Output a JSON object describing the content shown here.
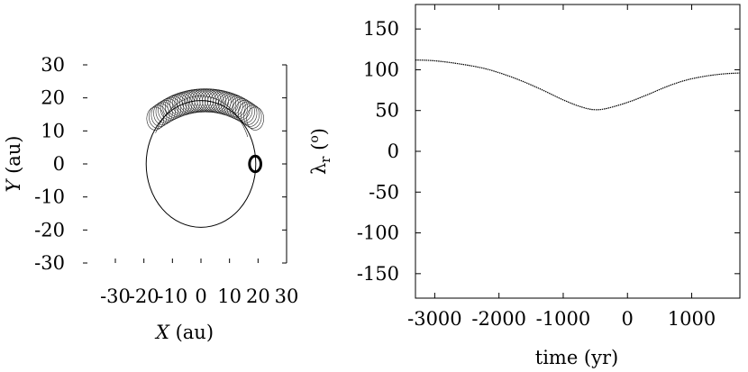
{
  "chart_data": [
    {
      "type": "line",
      "panel": "left",
      "xlabel_var": "X",
      "xlabel_unit": " (au)",
      "ylabel_var": "Y",
      "ylabel_unit": " (au)",
      "xlim": [
        -30,
        30
      ],
      "ylim": [
        -30,
        30
      ],
      "xticks": [
        -30,
        -20,
        -10,
        0,
        10,
        20,
        30
      ],
      "yticks": [
        -30,
        -20,
        -10,
        0,
        10,
        20,
        30
      ],
      "xtick_labels": [
        "-30",
        "-20",
        "-10",
        "0",
        "10",
        "20",
        "30"
      ],
      "ytick_labels": [
        "-30",
        "-20",
        "-10",
        "0",
        "10",
        "20",
        "30"
      ],
      "series": [
        {
          "shape": "circle",
          "center": [
            0,
            0
          ],
          "radius": 19.2
        },
        {
          "shape": "lobed-loops",
          "loops": 40,
          "region_x": [
            -16,
            19
          ],
          "region_y": [
            8,
            22
          ]
        },
        {
          "shape": "small-loop",
          "center": [
            19,
            0
          ],
          "radius_x": 0.8,
          "radius_y": 1.4
        }
      ],
      "grid": false
    },
    {
      "type": "line",
      "panel": "right",
      "xlabel": "time (yr)",
      "ylabel_symbol": "λ",
      "ylabel_sub": "r",
      "ylabel_unit": "o",
      "xlim": [
        -3300,
        1750
      ],
      "ylim": [
        -180,
        180
      ],
      "xticks": [
        -3000,
        -2000,
        -1000,
        0,
        1000
      ],
      "yticks": [
        150,
        100,
        50,
        0,
        -50,
        -100,
        -150
      ],
      "xtick_labels": [
        "-3000",
        "-2000",
        "-1000",
        "0",
        "1000"
      ],
      "ytick_labels": [
        "150",
        "100",
        "50",
        "0",
        "-50",
        "-100",
        "-150"
      ],
      "series": [
        {
          "x": [
            -3300,
            -3000,
            -2600,
            -2200,
            -1800,
            -1400,
            -1000,
            -700,
            -500,
            -300,
            0,
            300,
            600,
            900,
            1200,
            1500,
            1750
          ],
          "y": [
            112,
            111,
            107,
            101,
            91,
            78,
            63,
            54,
            51,
            53,
            60,
            69,
            79,
            87,
            92,
            95,
            96
          ]
        }
      ],
      "grid": false
    }
  ]
}
